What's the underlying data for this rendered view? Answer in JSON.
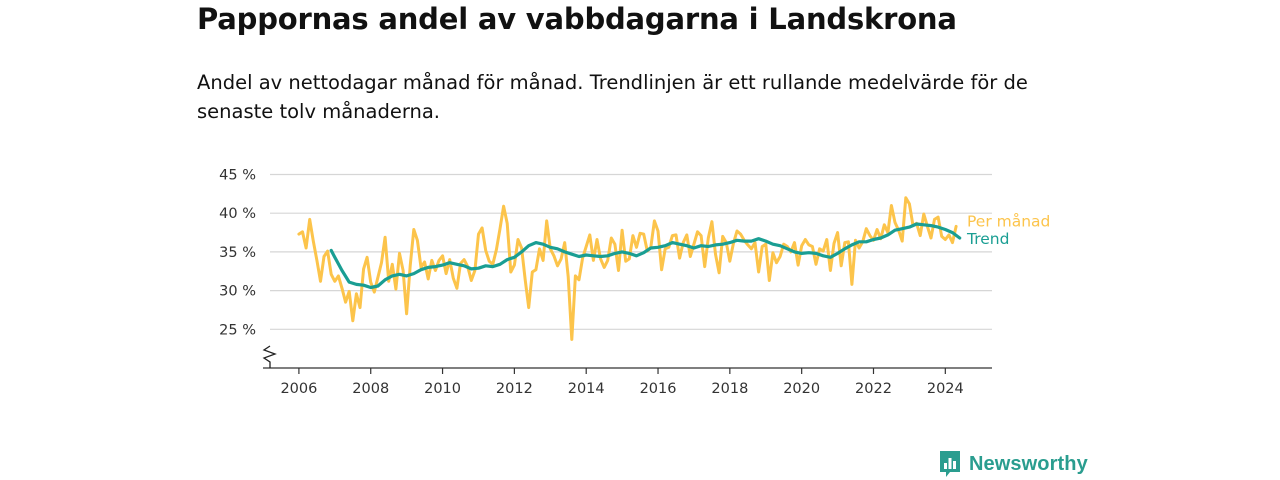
{
  "chart_data": {
    "type": "line",
    "title": "Pappornas andel av vabbdagarna i Landskrona",
    "subtitle": "Andel av nettodagar månad för månad. Trendlinjen är ett rullande medelvärde för de senaste tolv månaderna.",
    "xlabel": "",
    "ylabel": "",
    "xlim": [
      2005,
      2025.3
    ],
    "ylim": [
      20,
      45
    ],
    "y_axis_break": true,
    "grid": "horizontal",
    "x_ticks": [
      2006,
      2008,
      2010,
      2012,
      2014,
      2016,
      2018,
      2020,
      2022,
      2024
    ],
    "x_tick_labels": [
      "2006",
      "2008",
      "2010",
      "2012",
      "2014",
      "2016",
      "2018",
      "2020",
      "2022",
      "2024"
    ],
    "y_ticks": [
      25,
      30,
      35,
      40,
      45
    ],
    "y_tick_labels": [
      "25 %",
      "30 %",
      "35 %",
      "40 %",
      "45 %"
    ],
    "legend": "direct labels at line ends",
    "series": [
      {
        "name": "Per månad",
        "color": "#fcc44b",
        "points": [
          [
            2006.0,
            37.3
          ],
          [
            2006.1,
            37.6
          ],
          [
            2006.2,
            35.5
          ],
          [
            2006.3,
            39.2
          ],
          [
            2006.4,
            36.4
          ],
          [
            2006.5,
            33.9
          ],
          [
            2006.6,
            31.2
          ],
          [
            2006.7,
            34.4
          ],
          [
            2006.8,
            35.1
          ],
          [
            2006.9,
            32.1
          ],
          [
            2007.0,
            31.2
          ],
          [
            2007.1,
            31.9
          ],
          [
            2007.2,
            30.3
          ],
          [
            2007.3,
            28.5
          ],
          [
            2007.4,
            29.9
          ],
          [
            2007.5,
            26.1
          ],
          [
            2007.6,
            29.6
          ],
          [
            2007.7,
            27.8
          ],
          [
            2007.8,
            32.8
          ],
          [
            2007.9,
            34.3
          ],
          [
            2008.0,
            31.1
          ],
          [
            2008.1,
            29.8
          ],
          [
            2008.2,
            31.7
          ],
          [
            2008.3,
            33.6
          ],
          [
            2008.4,
            36.9
          ],
          [
            2008.5,
            31.2
          ],
          [
            2008.6,
            33.4
          ],
          [
            2008.7,
            30.2
          ],
          [
            2008.8,
            34.8
          ],
          [
            2008.9,
            32.6
          ],
          [
            2009.0,
            27.0
          ],
          [
            2009.1,
            33.2
          ],
          [
            2009.2,
            37.9
          ],
          [
            2009.3,
            36.5
          ],
          [
            2009.4,
            33.0
          ],
          [
            2009.5,
            33.7
          ],
          [
            2009.6,
            31.5
          ],
          [
            2009.7,
            33.9
          ],
          [
            2009.8,
            32.6
          ],
          [
            2009.9,
            33.9
          ],
          [
            2010.0,
            34.5
          ],
          [
            2010.1,
            32.2
          ],
          [
            2010.2,
            34.0
          ],
          [
            2010.3,
            31.6
          ],
          [
            2010.4,
            30.3
          ],
          [
            2010.5,
            33.5
          ],
          [
            2010.6,
            34.0
          ],
          [
            2010.7,
            33.1
          ],
          [
            2010.8,
            31.3
          ],
          [
            2010.9,
            32.6
          ],
          [
            2011.0,
            37.3
          ],
          [
            2011.1,
            38.1
          ],
          [
            2011.2,
            35.2
          ],
          [
            2011.3,
            33.8
          ],
          [
            2011.4,
            33.4
          ],
          [
            2011.5,
            35.3
          ],
          [
            2011.6,
            38.0
          ],
          [
            2011.7,
            40.9
          ],
          [
            2011.8,
            38.7
          ],
          [
            2011.9,
            32.4
          ],
          [
            2012.0,
            33.3
          ],
          [
            2012.1,
            36.6
          ],
          [
            2012.2,
            35.5
          ],
          [
            2012.3,
            31.4
          ],
          [
            2012.4,
            27.8
          ],
          [
            2012.5,
            32.4
          ],
          [
            2012.6,
            32.7
          ],
          [
            2012.7,
            35.4
          ],
          [
            2012.8,
            33.9
          ],
          [
            2012.9,
            39.0
          ],
          [
            2013.0,
            35.4
          ],
          [
            2013.1,
            34.5
          ],
          [
            2013.2,
            33.2
          ],
          [
            2013.3,
            34.1
          ],
          [
            2013.4,
            36.2
          ],
          [
            2013.5,
            31.8
          ],
          [
            2013.6,
            23.7
          ],
          [
            2013.7,
            31.9
          ],
          [
            2013.8,
            31.4
          ],
          [
            2013.9,
            34.2
          ],
          [
            2014.0,
            35.7
          ],
          [
            2014.1,
            37.2
          ],
          [
            2014.2,
            33.9
          ],
          [
            2014.3,
            36.6
          ],
          [
            2014.4,
            34.1
          ],
          [
            2014.5,
            33.0
          ],
          [
            2014.6,
            33.9
          ],
          [
            2014.7,
            36.8
          ],
          [
            2014.8,
            36.0
          ],
          [
            2014.9,
            32.6
          ],
          [
            2015.0,
            37.8
          ],
          [
            2015.1,
            33.8
          ],
          [
            2015.2,
            34.1
          ],
          [
            2015.3,
            37.1
          ],
          [
            2015.4,
            35.6
          ],
          [
            2015.5,
            37.4
          ],
          [
            2015.6,
            37.3
          ],
          [
            2015.7,
            35.1
          ],
          [
            2015.8,
            35.6
          ],
          [
            2015.9,
            39.0
          ],
          [
            2016.0,
            37.7
          ],
          [
            2016.1,
            32.7
          ],
          [
            2016.2,
            35.4
          ],
          [
            2016.3,
            35.6
          ],
          [
            2016.4,
            37.1
          ],
          [
            2016.5,
            37.2
          ],
          [
            2016.6,
            34.2
          ],
          [
            2016.7,
            36.2
          ],
          [
            2016.8,
            37.2
          ],
          [
            2016.9,
            34.4
          ],
          [
            2017.0,
            36.0
          ],
          [
            2017.1,
            37.6
          ],
          [
            2017.2,
            37.1
          ],
          [
            2017.3,
            33.1
          ],
          [
            2017.4,
            36.8
          ],
          [
            2017.5,
            38.9
          ],
          [
            2017.6,
            34.7
          ],
          [
            2017.7,
            32.3
          ],
          [
            2017.8,
            37.0
          ],
          [
            2017.9,
            36.2
          ],
          [
            2018.0,
            33.8
          ],
          [
            2018.1,
            36.1
          ],
          [
            2018.2,
            37.7
          ],
          [
            2018.3,
            37.3
          ],
          [
            2018.4,
            36.5
          ],
          [
            2018.5,
            35.9
          ],
          [
            2018.6,
            35.4
          ],
          [
            2018.7,
            36.2
          ],
          [
            2018.8,
            32.4
          ],
          [
            2018.9,
            35.7
          ],
          [
            2019.0,
            36.0
          ],
          [
            2019.1,
            31.3
          ],
          [
            2019.2,
            34.9
          ],
          [
            2019.3,
            33.6
          ],
          [
            2019.4,
            34.4
          ],
          [
            2019.5,
            36.0
          ],
          [
            2019.6,
            35.7
          ],
          [
            2019.7,
            35.0
          ],
          [
            2019.8,
            36.2
          ],
          [
            2019.9,
            33.3
          ],
          [
            2020.0,
            35.8
          ],
          [
            2020.1,
            36.6
          ],
          [
            2020.2,
            35.9
          ],
          [
            2020.3,
            35.7
          ],
          [
            2020.4,
            33.4
          ],
          [
            2020.5,
            35.4
          ],
          [
            2020.6,
            35.1
          ],
          [
            2020.7,
            36.6
          ],
          [
            2020.8,
            32.6
          ],
          [
            2020.9,
            36.1
          ],
          [
            2021.0,
            37.5
          ],
          [
            2021.1,
            33.2
          ],
          [
            2021.2,
            36.2
          ],
          [
            2021.3,
            36.3
          ],
          [
            2021.4,
            30.8
          ],
          [
            2021.5,
            36.5
          ],
          [
            2021.6,
            35.5
          ],
          [
            2021.7,
            36.3
          ],
          [
            2021.8,
            38.0
          ],
          [
            2021.9,
            37.1
          ],
          [
            2022.0,
            36.5
          ],
          [
            2022.1,
            37.9
          ],
          [
            2022.2,
            36.7
          ],
          [
            2022.3,
            38.5
          ],
          [
            2022.4,
            37.5
          ],
          [
            2022.5,
            41.0
          ],
          [
            2022.6,
            38.8
          ],
          [
            2022.7,
            37.8
          ],
          [
            2022.8,
            36.4
          ],
          [
            2022.9,
            42.0
          ],
          [
            2023.0,
            41.2
          ],
          [
            2023.1,
            38.4
          ],
          [
            2023.2,
            38.7
          ],
          [
            2023.3,
            37.1
          ],
          [
            2023.4,
            39.9
          ],
          [
            2023.5,
            38.3
          ],
          [
            2023.6,
            36.8
          ],
          [
            2023.7,
            39.2
          ],
          [
            2023.8,
            39.5
          ],
          [
            2023.9,
            37.0
          ],
          [
            2024.0,
            36.6
          ],
          [
            2024.1,
            37.2
          ],
          [
            2024.2,
            36.2
          ],
          [
            2024.3,
            38.3
          ]
        ]
      },
      {
        "name": "Trend",
        "color": "#1a9e93",
        "points": [
          [
            2006.9,
            35.2
          ],
          [
            2007.0,
            34.3
          ],
          [
            2007.2,
            32.6
          ],
          [
            2007.4,
            31.1
          ],
          [
            2007.6,
            30.8
          ],
          [
            2007.8,
            30.7
          ],
          [
            2008.0,
            30.4
          ],
          [
            2008.2,
            30.6
          ],
          [
            2008.4,
            31.4
          ],
          [
            2008.6,
            31.9
          ],
          [
            2008.8,
            32.1
          ],
          [
            2009.0,
            31.9
          ],
          [
            2009.2,
            32.2
          ],
          [
            2009.4,
            32.7
          ],
          [
            2009.6,
            33.0
          ],
          [
            2009.8,
            33.1
          ],
          [
            2010.0,
            33.3
          ],
          [
            2010.2,
            33.6
          ],
          [
            2010.4,
            33.4
          ],
          [
            2010.6,
            33.2
          ],
          [
            2010.8,
            32.8
          ],
          [
            2011.0,
            32.9
          ],
          [
            2011.2,
            33.2
          ],
          [
            2011.4,
            33.1
          ],
          [
            2011.6,
            33.4
          ],
          [
            2011.8,
            34.0
          ],
          [
            2012.0,
            34.3
          ],
          [
            2012.2,
            35.0
          ],
          [
            2012.4,
            35.8
          ],
          [
            2012.6,
            36.2
          ],
          [
            2012.8,
            36.0
          ],
          [
            2013.0,
            35.6
          ],
          [
            2013.2,
            35.4
          ],
          [
            2013.4,
            35.0
          ],
          [
            2013.6,
            34.7
          ],
          [
            2013.8,
            34.4
          ],
          [
            2014.0,
            34.6
          ],
          [
            2014.2,
            34.5
          ],
          [
            2014.4,
            34.4
          ],
          [
            2014.6,
            34.5
          ],
          [
            2014.8,
            34.8
          ],
          [
            2015.0,
            35.0
          ],
          [
            2015.2,
            34.8
          ],
          [
            2015.4,
            34.5
          ],
          [
            2015.6,
            34.9
          ],
          [
            2015.8,
            35.5
          ],
          [
            2016.0,
            35.6
          ],
          [
            2016.2,
            35.8
          ],
          [
            2016.4,
            36.2
          ],
          [
            2016.6,
            36.0
          ],
          [
            2016.8,
            35.8
          ],
          [
            2017.0,
            35.5
          ],
          [
            2017.2,
            35.8
          ],
          [
            2017.4,
            35.7
          ],
          [
            2017.6,
            35.9
          ],
          [
            2017.8,
            36.0
          ],
          [
            2018.0,
            36.2
          ],
          [
            2018.2,
            36.5
          ],
          [
            2018.4,
            36.4
          ],
          [
            2018.6,
            36.4
          ],
          [
            2018.8,
            36.7
          ],
          [
            2019.0,
            36.4
          ],
          [
            2019.2,
            36.0
          ],
          [
            2019.4,
            35.8
          ],
          [
            2019.6,
            35.4
          ],
          [
            2019.8,
            35.0
          ],
          [
            2020.0,
            34.8
          ],
          [
            2020.2,
            34.9
          ],
          [
            2020.4,
            34.8
          ],
          [
            2020.6,
            34.5
          ],
          [
            2020.8,
            34.3
          ],
          [
            2021.0,
            34.8
          ],
          [
            2021.2,
            35.4
          ],
          [
            2021.4,
            35.9
          ],
          [
            2021.6,
            36.3
          ],
          [
            2021.8,
            36.3
          ],
          [
            2022.0,
            36.6
          ],
          [
            2022.2,
            36.8
          ],
          [
            2022.4,
            37.2
          ],
          [
            2022.6,
            37.8
          ],
          [
            2022.8,
            38.0
          ],
          [
            2023.0,
            38.2
          ],
          [
            2023.2,
            38.6
          ],
          [
            2023.4,
            38.5
          ],
          [
            2023.6,
            38.4
          ],
          [
            2023.8,
            38.2
          ],
          [
            2024.0,
            37.9
          ],
          [
            2024.2,
            37.5
          ],
          [
            2024.4,
            36.8
          ]
        ]
      }
    ]
  },
  "brand": {
    "name": "Newsworthy",
    "icon": "bar-chart-speech-bubble-icon",
    "color": "#2a9d8f"
  }
}
